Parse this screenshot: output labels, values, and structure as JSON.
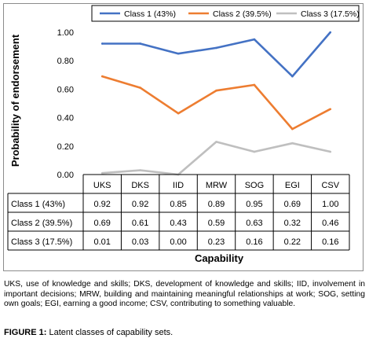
{
  "chart_data": {
    "type": "line",
    "categories": [
      "UKS",
      "DKS",
      "IID",
      "MRW",
      "SOG",
      "EGI",
      "CSV"
    ],
    "series": [
      {
        "name": "Class 1 (43%)",
        "color": "#4472C4",
        "values": [
          0.92,
          0.92,
          0.85,
          0.89,
          0.95,
          0.69,
          1.0
        ],
        "labels": [
          "0.92",
          "0.92",
          "0.85",
          "0.89",
          "0.95",
          "0.69",
          "1.00"
        ]
      },
      {
        "name": "Class 2 (39.5%)",
        "color": "#ED7D31",
        "values": [
          0.69,
          0.61,
          0.43,
          0.59,
          0.63,
          0.32,
          0.46
        ],
        "labels": [
          "0.69",
          "0.61",
          "0.43",
          "0.59",
          "0.63",
          "0.32",
          "0.46"
        ]
      },
      {
        "name": "Class 3 (17.5%)",
        "color": "#BFBFBF",
        "values": [
          0.01,
          0.03,
          0.0,
          0.23,
          0.16,
          0.22,
          0.16
        ],
        "labels": [
          "0.01",
          "0.03",
          "0.00",
          "0.23",
          "0.16",
          "0.22",
          "0.16"
        ]
      }
    ],
    "ylabel": "Probability of endorsement",
    "xlabel": "Capability",
    "ylim": [
      0,
      1
    ],
    "yticks": [
      0,
      0.2,
      0.4,
      0.6,
      0.8,
      1.0
    ],
    "ytick_labels": [
      "0.00",
      "0.20",
      "0.40",
      "0.60",
      "0.80",
      "1.00"
    ],
    "legend_position": "top",
    "grid": false,
    "data_table": true
  },
  "footnote": "UKS, use of knowledge and skills; DKS, development of knowledge and skills; IID, involvement in important decisions; MRW, building and maintaining meaningful relationships at work; SOG, setting own goals; EGI, earning a good income; CSV, contributing to something valuable.",
  "caption": {
    "label": "FIGURE 1:",
    "text": " Latent classes of capability sets."
  }
}
